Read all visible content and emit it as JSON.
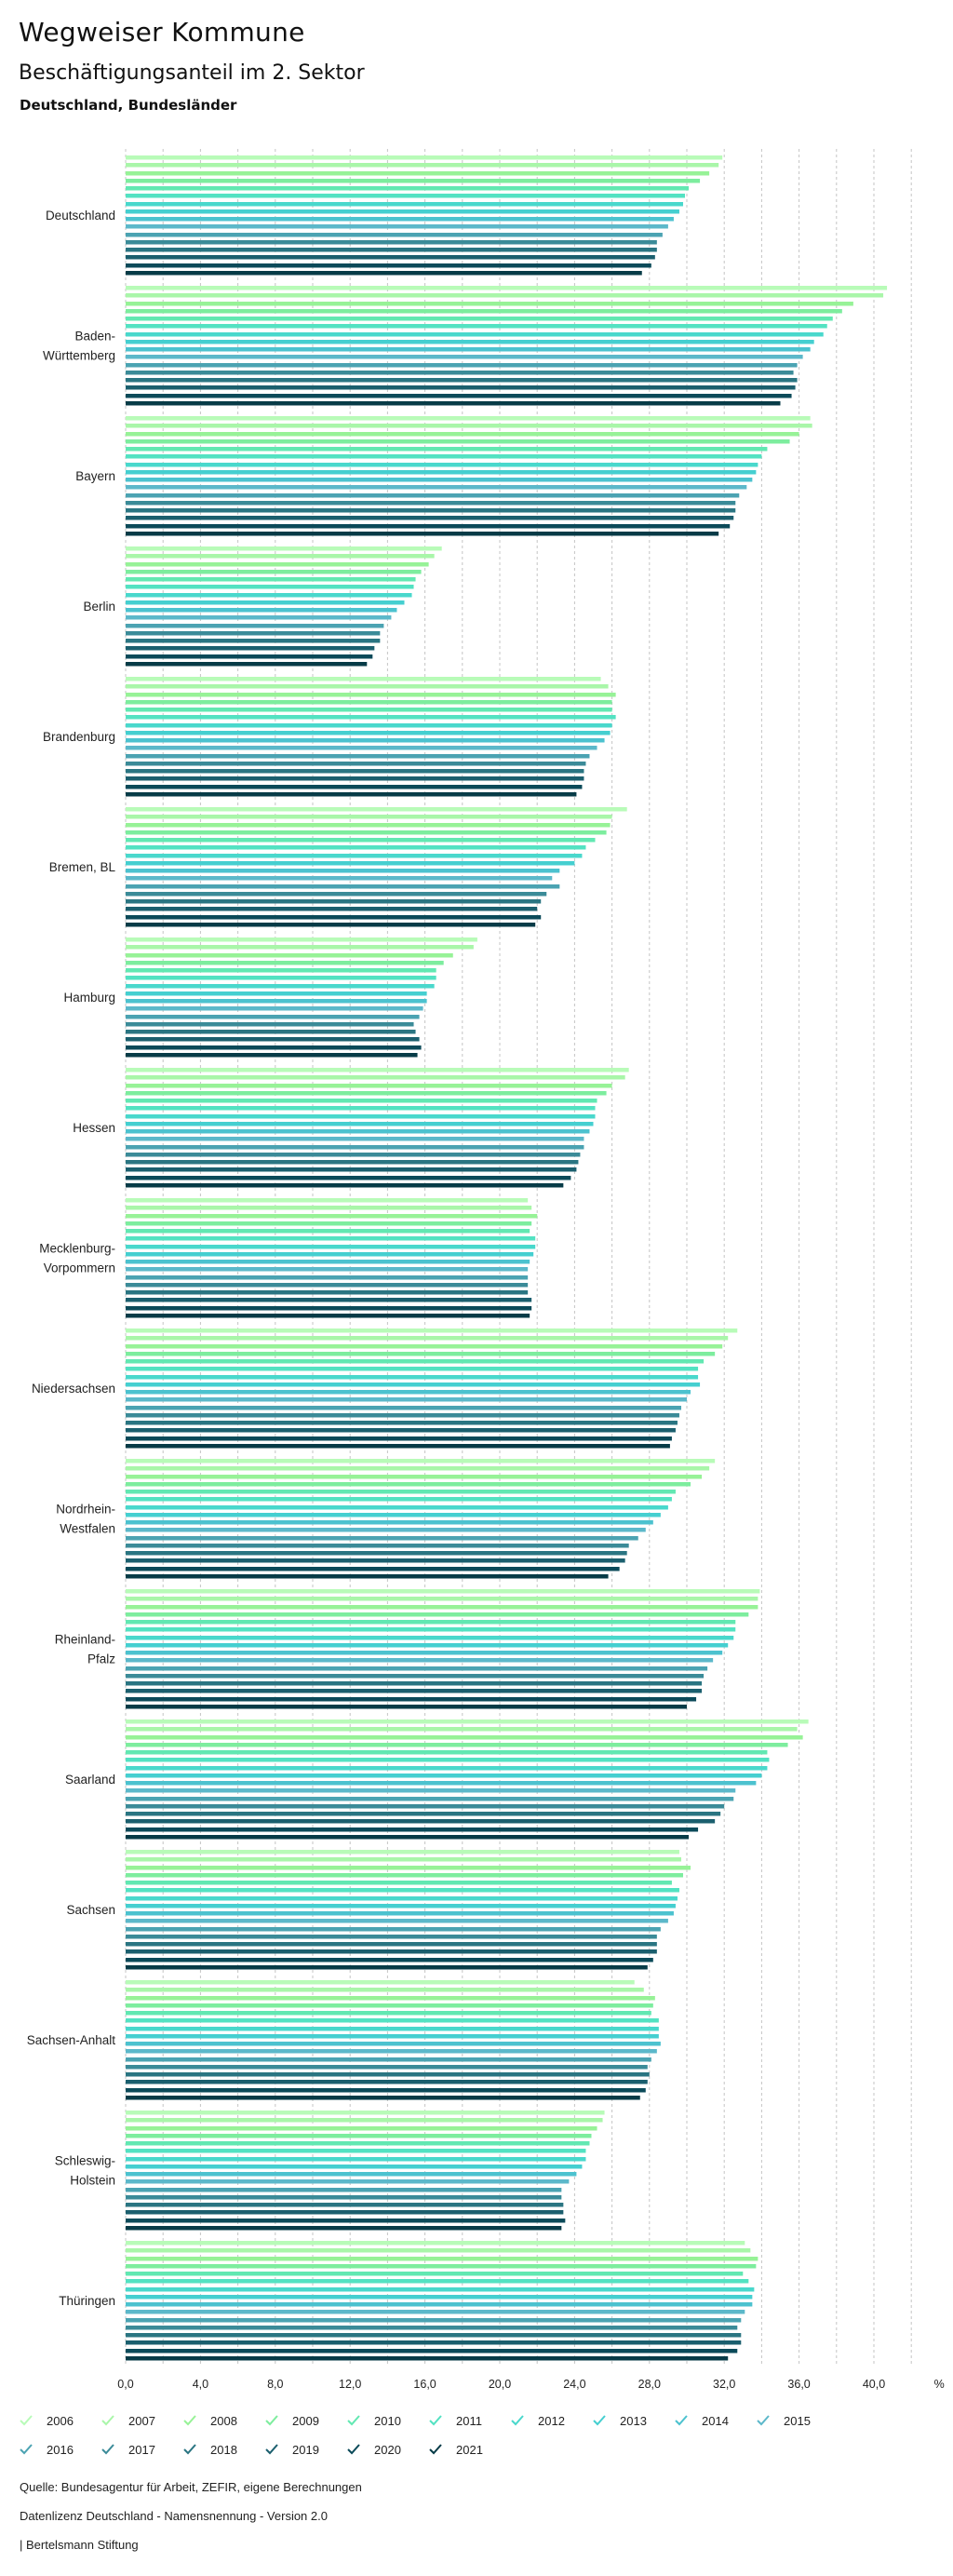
{
  "header": {
    "title": "Wegweiser Kommune",
    "subtitle": "Beschäftigungsanteil im 2. Sektor",
    "scope": "Deutschland, Bundesländer"
  },
  "chart_data": {
    "type": "bar",
    "orientation": "horizontal",
    "title": "Beschäftigungsanteil im 2. Sektor",
    "xlabel": "",
    "unit_label": "%",
    "xlim": [
      0,
      42
    ],
    "x_ticks": [
      "0,0",
      "4,0",
      "8,0",
      "12,0",
      "16,0",
      "20,0",
      "24,0",
      "28,0",
      "32,0",
      "36,0",
      "40,0"
    ],
    "x_tick_values": [
      0,
      4,
      8,
      12,
      16,
      20,
      24,
      28,
      32,
      36,
      40
    ],
    "grid": "vertical dashed every 2",
    "legend_position": "bottom",
    "categories": [
      [
        "Deutschland"
      ],
      [
        "Baden-",
        "Württemberg"
      ],
      [
        "Bayern"
      ],
      [
        "Berlin"
      ],
      [
        "Brandenburg"
      ],
      [
        "Bremen, BL"
      ],
      [
        "Hamburg"
      ],
      [
        "Hessen"
      ],
      [
        "Mecklenburg-",
        "Vorpommern"
      ],
      [
        "Niedersachsen"
      ],
      [
        "Nordrhein-",
        "Westfalen"
      ],
      [
        "Rheinland-",
        "Pfalz"
      ],
      [
        "Saarland"
      ],
      [
        "Sachsen"
      ],
      [
        "Sachsen-Anhalt"
      ],
      [
        "Schleswig-",
        "Holstein"
      ],
      [
        "Thüringen"
      ]
    ],
    "series": [
      {
        "name": "2006",
        "color": "#b8fbb8",
        "values": [
          31.9,
          40.7,
          36.6,
          16.9,
          25.4,
          26.8,
          18.8,
          26.9,
          21.5,
          32.7,
          31.5,
          33.9,
          36.5,
          29.6,
          27.2,
          25.6,
          33.1
        ]
      },
      {
        "name": "2007",
        "color": "#a9f6a9",
        "values": [
          31.7,
          40.5,
          36.7,
          16.5,
          25.8,
          26.0,
          18.6,
          26.7,
          21.7,
          32.2,
          31.2,
          33.8,
          35.9,
          29.7,
          27.7,
          25.5,
          33.4
        ]
      },
      {
        "name": "2008",
        "color": "#97f297",
        "values": [
          31.2,
          38.9,
          36.0,
          16.2,
          26.2,
          25.9,
          17.5,
          26.0,
          22.0,
          31.9,
          30.8,
          33.8,
          36.2,
          30.2,
          28.3,
          25.2,
          33.8
        ]
      },
      {
        "name": "2009",
        "color": "#7ded9e",
        "values": [
          30.7,
          38.3,
          35.5,
          15.8,
          26.0,
          25.7,
          17.0,
          25.7,
          21.7,
          31.5,
          30.2,
          33.3,
          35.4,
          29.8,
          28.2,
          24.9,
          33.7
        ]
      },
      {
        "name": "2010",
        "color": "#62e8b2",
        "values": [
          30.1,
          37.8,
          34.3,
          15.5,
          26.0,
          25.1,
          16.6,
          25.2,
          21.6,
          30.9,
          29.4,
          32.6,
          34.3,
          29.2,
          28.1,
          24.8,
          33.0
        ]
      },
      {
        "name": "2011",
        "color": "#53e2c2",
        "values": [
          29.9,
          37.5,
          34.0,
          15.4,
          26.2,
          24.6,
          16.6,
          25.1,
          21.9,
          30.6,
          29.2,
          32.6,
          34.4,
          29.6,
          28.5,
          24.6,
          33.3
        ]
      },
      {
        "name": "2012",
        "color": "#49d8cc",
        "values": [
          29.8,
          37.3,
          33.8,
          15.3,
          26.0,
          24.4,
          16.5,
          25.1,
          21.9,
          30.6,
          29.0,
          32.5,
          34.3,
          29.5,
          28.5,
          24.6,
          33.6
        ]
      },
      {
        "name": "2013",
        "color": "#45cfd0",
        "values": [
          29.6,
          36.8,
          33.7,
          14.9,
          25.9,
          24.0,
          16.1,
          25.0,
          21.8,
          30.7,
          28.6,
          32.2,
          34.0,
          29.4,
          28.5,
          24.4,
          33.5
        ]
      },
      {
        "name": "2014",
        "color": "#4cc2cf",
        "values": [
          29.3,
          36.6,
          33.5,
          14.5,
          25.6,
          23.2,
          16.1,
          24.8,
          21.6,
          30.2,
          28.2,
          31.9,
          33.7,
          29.3,
          28.6,
          24.1,
          33.5
        ]
      },
      {
        "name": "2015",
        "color": "#5cb8ca",
        "values": [
          29.0,
          36.2,
          33.2,
          14.2,
          25.2,
          22.8,
          15.9,
          24.5,
          21.5,
          30.0,
          27.8,
          31.4,
          32.6,
          29.0,
          28.4,
          23.7,
          33.1
        ]
      },
      {
        "name": "2016",
        "color": "#4ba3b2",
        "values": [
          28.7,
          35.9,
          32.8,
          13.8,
          24.8,
          23.2,
          15.7,
          24.5,
          21.5,
          29.7,
          27.4,
          31.1,
          32.5,
          28.6,
          28.1,
          23.3,
          32.9
        ]
      },
      {
        "name": "2017",
        "color": "#3b8b98",
        "values": [
          28.4,
          35.7,
          32.6,
          13.6,
          24.6,
          22.5,
          15.4,
          24.3,
          21.5,
          29.6,
          26.9,
          30.9,
          32.0,
          28.4,
          27.9,
          23.3,
          32.7
        ]
      },
      {
        "name": "2018",
        "color": "#2a7582",
        "values": [
          28.4,
          35.9,
          32.6,
          13.6,
          24.5,
          22.2,
          15.5,
          24.2,
          21.5,
          29.5,
          26.8,
          30.8,
          31.8,
          28.4,
          28.0,
          23.4,
          32.9
        ]
      },
      {
        "name": "2019",
        "color": "#1b5f6e",
        "values": [
          28.3,
          35.8,
          32.5,
          13.3,
          24.5,
          22.0,
          15.7,
          24.1,
          21.7,
          29.4,
          26.7,
          30.8,
          31.5,
          28.4,
          27.9,
          23.4,
          32.9
        ]
      },
      {
        "name": "2020",
        "color": "#0b4a59",
        "values": [
          28.1,
          35.6,
          32.3,
          13.2,
          24.4,
          22.2,
          15.8,
          23.8,
          21.7,
          29.2,
          26.4,
          30.5,
          30.6,
          28.2,
          27.8,
          23.5,
          32.7
        ]
      },
      {
        "name": "2021",
        "color": "#073b47",
        "values": [
          27.6,
          35.0,
          31.7,
          12.9,
          24.1,
          21.9,
          15.6,
          23.4,
          21.6,
          29.1,
          25.8,
          30.0,
          30.1,
          27.9,
          27.5,
          23.3,
          32.2
        ]
      }
    ]
  },
  "footer": {
    "source": "Quelle: Bundesagentur für Arbeit, ZEFIR, eigene Berechnungen",
    "license": "Datenlizenz Deutschland - Namensnennung - Version 2.0",
    "credit": "| Bertelsmann Stiftung"
  }
}
